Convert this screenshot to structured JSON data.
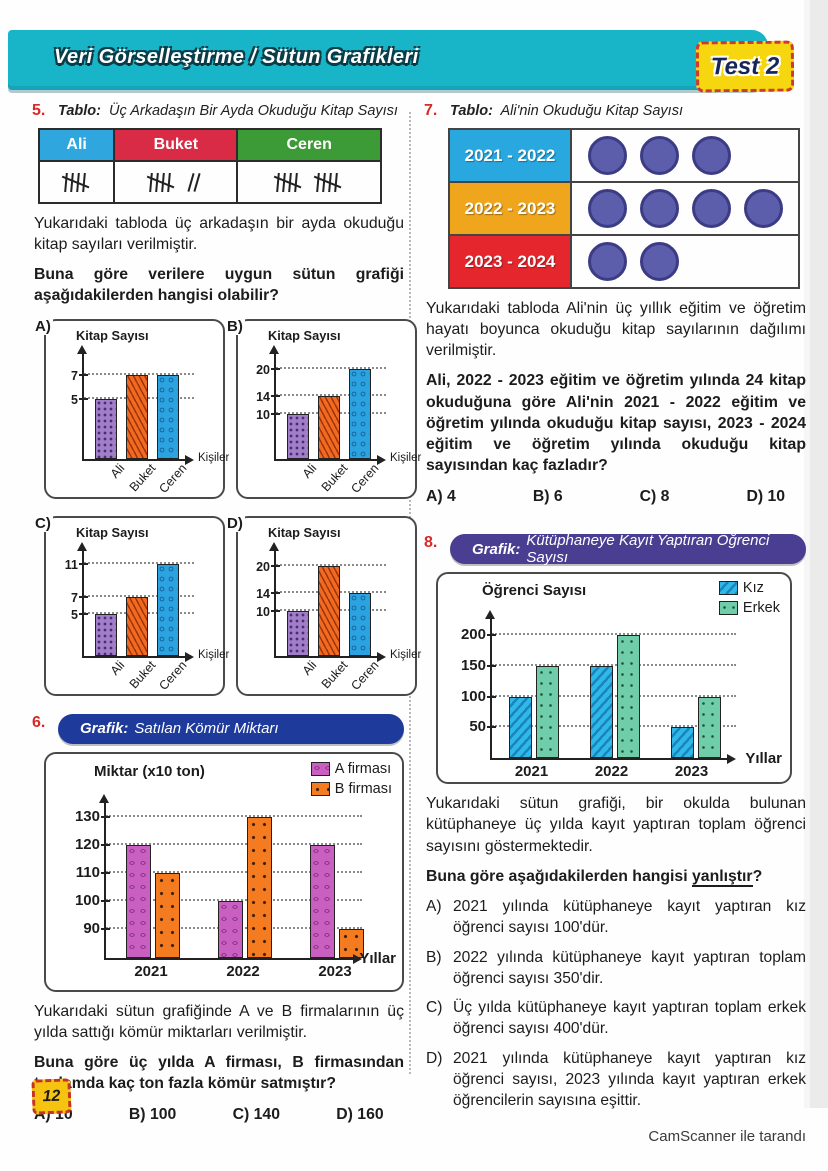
{
  "header": {
    "title": "Veri Görselleştirme / Sütun Grafikleri",
    "badge": "Test 2"
  },
  "footer": {
    "page_number": "12",
    "scanner_note": "CamScanner ile tarandı"
  },
  "colors": {
    "banner_teal": "#18b4c8",
    "test_badge_yellow": "#f6d60e",
    "test_badge_border": "#cf3a30",
    "q5_header_ali": "#2fa6dd",
    "q5_header_buket": "#d92b45",
    "q5_header_ceren": "#3d9b37",
    "bar_ali_purple": "#a07fc8",
    "bar_buket_orange": "#f26a21",
    "bar_ceren_blue": "#2ba3e0",
    "q6_banner_navy": "#1e3a9b",
    "bar_a_firm_magenta": "#c95fc0",
    "bar_b_firm_orange": "#f47b20",
    "q7_row1_blue": "#29a8e0",
    "q7_row2_amber": "#efa61d",
    "q7_row3_red": "#e5262c",
    "q7_circle": "#5c5dab",
    "q8_banner_purple": "#4a3e92",
    "bar_kiz_cyan": "#2fb9e8",
    "bar_erkek_green": "#6fcda9",
    "question_number_red": "#d42a2a"
  },
  "q5": {
    "number": "5.",
    "title_prefix": "Tablo:",
    "title": "Üç Arkadaşın Bir Ayda Okuduğu Kitap Sayısı",
    "table": {
      "headers": [
        "Ali",
        "Buket",
        "Ceren"
      ],
      "tallies": [
        5,
        7,
        10
      ]
    },
    "desc": "Yukarıdaki tabloda üç arkadaşın bir ayda okuduğu kitap sayıları verilmiştir.",
    "question": "Buna göre verilere uygun sütun grafiği aşağıdakilerden hangisi olabilir?",
    "option_charts": [
      {
        "label": "A)",
        "type": "bar",
        "ylabel": "Kitap Sayısı",
        "xlabel": "Kişiler",
        "categories": [
          "Ali",
          "Buket",
          "Ceren"
        ],
        "values": [
          5,
          7,
          7
        ],
        "ticks": [
          5,
          7
        ],
        "vmin": 0,
        "vmax": 9
      },
      {
        "label": "B)",
        "type": "bar",
        "ylabel": "Kitap Sayısı",
        "xlabel": "Kişiler",
        "categories": [
          "Ali",
          "Buket",
          "Ceren"
        ],
        "values": [
          10,
          14,
          20
        ],
        "ticks": [
          10,
          14,
          20
        ],
        "vmin": 0,
        "vmax": 24
      },
      {
        "label": "C)",
        "type": "bar",
        "ylabel": "Kitap Sayısı",
        "xlabel": "Kişiler",
        "categories": [
          "Ali",
          "Buket",
          "Ceren"
        ],
        "values": [
          5,
          7,
          11
        ],
        "ticks": [
          5,
          7,
          11
        ],
        "vmin": 0,
        "vmax": 13
      },
      {
        "label": "D)",
        "type": "bar",
        "ylabel": "Kitap Sayısı",
        "xlabel": "Kişiler",
        "categories": [
          "Ali",
          "Buket",
          "Ceren"
        ],
        "values": [
          10,
          20,
          14
        ],
        "ticks": [
          10,
          14,
          20
        ],
        "vmin": 0,
        "vmax": 24
      }
    ]
  },
  "q6": {
    "number": "6.",
    "banner_prefix": "Grafik:",
    "banner_title": "Satılan Kömür Miktarı",
    "chart": {
      "type": "bar",
      "ylabel": "Miktar (x10 ton)",
      "xlabel": "Yıllar",
      "categories": [
        "2021",
        "2022",
        "2023"
      ],
      "series": [
        {
          "name": "A firması",
          "values": [
            120,
            100,
            120
          ]
        },
        {
          "name": "B firması",
          "values": [
            110,
            130,
            90
          ]
        }
      ],
      "ticks": [
        90,
        100,
        110,
        120,
        130
      ],
      "vmin": 80,
      "vmax": 136
    },
    "desc": "Yukarıdaki sütun grafiğinde A ve B firmalarının üç yılda sattığı kömür miktarları verilmiştir.",
    "question": "Buna göre üç yılda A firması, B firmasından toplamda kaç ton fazla kömür satmıştır?",
    "options": [
      "A) 10",
      "B) 100",
      "C) 140",
      "D) 160"
    ]
  },
  "q7": {
    "number": "7.",
    "title_prefix": "Tablo:",
    "title": "Ali'nin Okuduğu Kitap Sayısı",
    "table": {
      "rows": [
        {
          "label": "2021 - 2022",
          "count": 3
        },
        {
          "label": "2022 - 2023",
          "count": 4
        },
        {
          "label": "2023 - 2024",
          "count": 2
        }
      ]
    },
    "desc": "Yukarıdaki tabloda Ali'nin üç yıllık eğitim ve öğretim hayatı boyunca okuduğu kitap sayılarının dağılımı verilmiştir.",
    "question": "Ali, 2022 - 2023 eğitim ve öğretim yılında 24 kitap okuduğuna göre Ali'nin 2021 - 2022 eğitim ve öğretim yılında okuduğu kitap sayısı, 2023 - 2024 eğitim ve öğretim yılında okuduğu kitap sayısından kaç fazladır?",
    "options": [
      "A) 4",
      "B) 6",
      "C) 8",
      "D) 10"
    ]
  },
  "q8": {
    "number": "8.",
    "banner_prefix": "Grafik:",
    "banner_title": "Kütüphaneye Kayıt Yaptıran Öğrenci Sayısı",
    "chart": {
      "type": "bar",
      "ylabel": "Öğrenci Sayısı",
      "xlabel": "Yıllar",
      "categories": [
        "2021",
        "2022",
        "2023"
      ],
      "series": [
        {
          "name": "Kız",
          "values": [
            100,
            150,
            50
          ]
        },
        {
          "name": "Erkek",
          "values": [
            150,
            200,
            100
          ]
        }
      ],
      "ticks": [
        50,
        100,
        150,
        200
      ],
      "vmin": 0,
      "vmax": 230
    },
    "desc": "Yukarıdaki sütun grafiği, bir okulda bulunan kütüphaneye üç yılda kayıt yaptıran toplam öğrenci sayısını göstermektedir.",
    "question_prefix": "Buna göre aşağıdakilerden hangisi ",
    "question_underlined": "yanlıştır",
    "question_suffix": "?",
    "options": [
      {
        "letter": "A)",
        "text": "2021 yılında kütüphaneye kayıt yaptıran kız öğrenci sayısı 100'dür."
      },
      {
        "letter": "B)",
        "text": "2022 yılında kütüphaneye kayıt yaptıran toplam öğrenci sayısı 350'dir."
      },
      {
        "letter": "C)",
        "text": "Üç yılda kütüphaneye kayıt yaptıran toplam erkek öğrenci sayısı 400'dür."
      },
      {
        "letter": "D)",
        "text": "2021 yılında kütüphaneye kayıt yaptıran kız öğrenci sayısı, 2023 yılında kayıt yaptıran erkek öğrencilerin sayısına eşittir."
      }
    ]
  }
}
